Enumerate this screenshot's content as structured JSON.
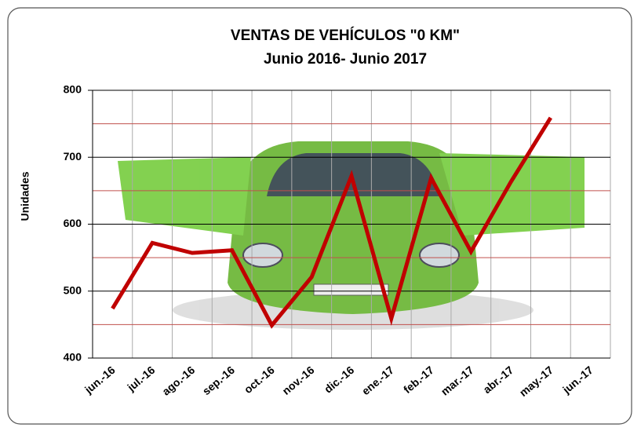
{
  "chart_data": {
    "type": "line",
    "title": "VENTAS DE VEHÍCULOS \"0 KM\"",
    "subtitle": "Junio 2016- Junio 2017",
    "y_label": "Unidades",
    "categories": [
      "jun.-16",
      "jul.-16",
      "ago.-16",
      "sep.-16",
      "oct.-16",
      "nov.-16",
      "dic.-16",
      "ene.-17",
      "feb.-17",
      "mar.-17",
      "abr.-17",
      "may.-17",
      "jun.-17"
    ],
    "series": [
      {
        "name": "Unidades",
        "color": "#c00000",
        "values": [
          474,
          572,
          557,
          561,
          449,
          521,
          672,
          459,
          669,
          559,
          663,
          759,
          null
        ]
      }
    ],
    "ylim": [
      400,
      800
    ],
    "yticks": [
      400,
      500,
      600,
      700,
      800
    ],
    "minor_yticks": [
      450,
      550,
      650,
      750
    ],
    "grid": true
  }
}
